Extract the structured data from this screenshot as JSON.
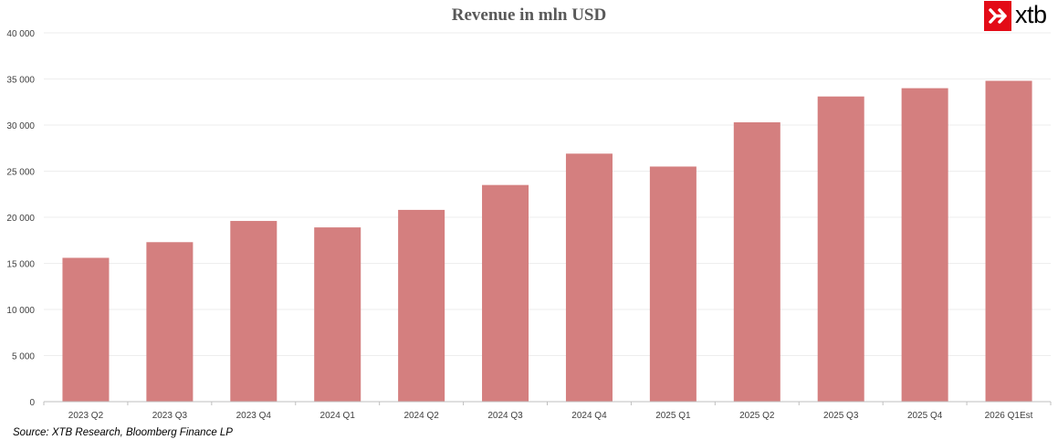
{
  "title": "Revenue in mln USD",
  "logo": {
    "text": "xtb",
    "mark_color": "#e30b17"
  },
  "source": "Source: XTB Research, Bloomberg Finance LP",
  "colors": {
    "bar": "#d47f7f",
    "grid": "#eeeeee",
    "axis": "#bfbfbf",
    "tick_text": "#404040"
  },
  "chart_data": {
    "type": "bar",
    "title": "Revenue in mln USD",
    "categories": [
      "2023 Q2",
      "2023 Q3",
      "2023 Q4",
      "2024 Q1",
      "2024 Q2",
      "2024 Q3",
      "2024 Q4",
      "2025 Q1",
      "2025 Q2",
      "2025 Q3",
      "2025 Q4",
      "2026 Q1Est"
    ],
    "values": [
      15600,
      17300,
      19600,
      18900,
      20800,
      23500,
      26900,
      25500,
      30300,
      33100,
      34000,
      34800
    ],
    "y_ticks": [
      "0",
      "5 000",
      "10 000",
      "15 000",
      "20 000",
      "25 000",
      "30 000",
      "35 000",
      "40 000"
    ],
    "ylim": [
      0,
      40000
    ],
    "grid": true,
    "legend": "none",
    "xlabel": "",
    "ylabel": ""
  }
}
